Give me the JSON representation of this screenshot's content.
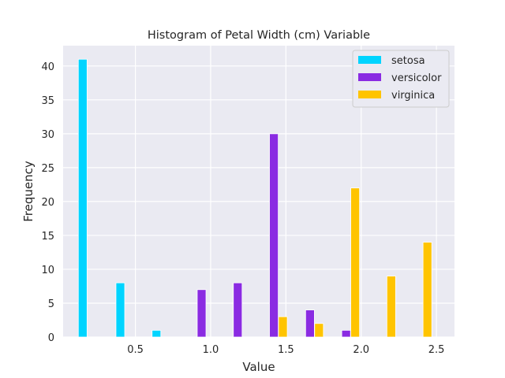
{
  "chart_data": {
    "type": "bar",
    "title": "Histogram of Petal Width (cm)  Variable",
    "xlabel": "Value",
    "ylabel": "Frequency",
    "xlim": [
      0.02,
      2.62
    ],
    "ylim": [
      0,
      43
    ],
    "xticks": [
      "0.5",
      "1.0",
      "1.5",
      "2.0",
      "2.5"
    ],
    "yticks": [
      "0",
      "5",
      "10",
      "15",
      "20",
      "25",
      "30",
      "35",
      "40"
    ],
    "grid": true,
    "legend_position": "top-right",
    "bar_width": 0.058,
    "series": [
      {
        "name": "setosa",
        "color": "#00d4ff",
        "bars": [
          {
            "x": 0.15,
            "value": 41
          },
          {
            "x": 0.4,
            "value": 8
          },
          {
            "x": 0.64,
            "value": 1
          }
        ]
      },
      {
        "name": "versicolor",
        "color": "#8a2be2",
        "bars": [
          {
            "x": 0.94,
            "value": 7
          },
          {
            "x": 1.18,
            "value": 8
          },
          {
            "x": 1.42,
            "value": 30
          },
          {
            "x": 1.66,
            "value": 4
          },
          {
            "x": 1.9,
            "value": 1
          }
        ]
      },
      {
        "name": "virginica",
        "color": "#ffc400",
        "bars": [
          {
            "x": 1.48,
            "value": 3
          },
          {
            "x": 1.72,
            "value": 2
          },
          {
            "x": 1.96,
            "value": 22
          },
          {
            "x": 2.2,
            "value": 9
          },
          {
            "x": 2.44,
            "value": 14
          }
        ]
      }
    ]
  }
}
